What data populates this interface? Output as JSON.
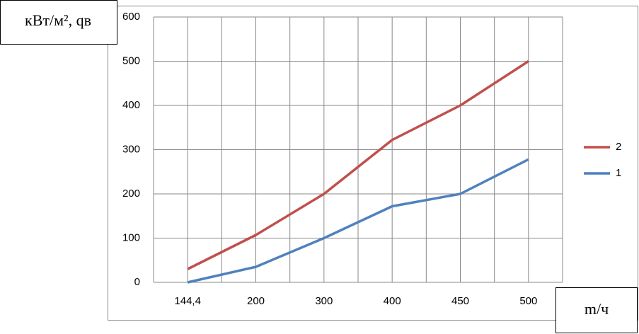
{
  "chart_data": {
    "type": "line",
    "y_label": "кВт/м², qв",
    "x_label": "m/ч",
    "categories": [
      "144,4",
      "200",
      "300",
      "400",
      "450",
      "500"
    ],
    "series": [
      {
        "name": "2",
        "color": "#c0504d",
        "values": [
          30,
          107,
          200,
          322,
          400,
          500
        ]
      },
      {
        "name": "1",
        "color": "#4f81bd",
        "values": [
          0,
          35,
          100,
          172,
          200,
          278
        ]
      }
    ],
    "ylim": [
      0,
      600
    ],
    "yticks": [
      0,
      100,
      200,
      300,
      400,
      500,
      600
    ],
    "grid": true,
    "legend": "right"
  }
}
